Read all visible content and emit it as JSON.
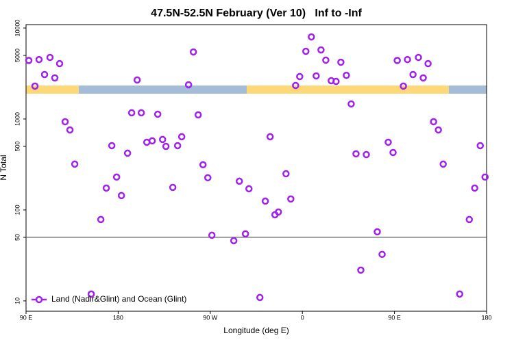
{
  "chart_data": {
    "type": "scatter",
    "title": "47.5N-52.5N February (Ver 10)   Inf to -Inf",
    "x_label": "Longitude (deg E)",
    "y_label": "N Total",
    "log_y": true,
    "hline": 50,
    "xlim": [
      90,
      540
    ],
    "xticks": [
      {
        "value": 90,
        "label": "90 E"
      },
      180,
      {
        "value": 270,
        "label": "90 W"
      },
      {
        "value": 360,
        "label": "0"
      },
      {
        "value": 450,
        "label": "90 E"
      },
      {
        "value": 540,
        "label": "180"
      }
    ],
    "ylim": [
      7.7,
      10900
    ],
    "yticks": [
      10,
      50,
      100,
      500,
      1000,
      5000,
      10000
    ],
    "legend": "bottom-left",
    "x": [
      92.7,
      98.7,
      102.7,
      108.1,
      113.4,
      118.1,
      122.8,
      128.2,
      132.9,
      137.6,
      153.7,
      163.1,
      168.4,
      173.8,
      178.5,
      183.2,
      189.2,
      193.2,
      198.6,
      202.6,
      208.0,
      213.3,
      218.7,
      223.4,
      226.7,
      233.4,
      238.1,
      242.1,
      248.8,
      253.5,
      258.2,
      262.9,
      267.6,
      271.6,
      293.0,
      298.4,
      304.4,
      307.8,
      318.5,
      323.8,
      328.5,
      333.2,
      336.6,
      344.0,
      348.7,
      353.4,
      357.4,
      363.4,
      368.8,
      373.5,
      378.2,
      382.9,
      388.2,
      392.9,
      397.6,
      403.0,
      407.7,
      412.4,
      417.1,
      422.5,
      433.2,
      437.9,
      443.9,
      448.6,
      452.7,
      458.7,
      462.7,
      468.1,
      473.4,
      478.1,
      482.8,
      488.2,
      492.9,
      497.6,
      513.7,
      523.1,
      528.4,
      533.8,
      538.5
    ],
    "series": [
      {
        "name": "Land (Nadir&Glint) and Ocean (Glint)",
        "color": "#a020f0",
        "values": [
          4400,
          2300,
          4500,
          3080,
          4750,
          2830,
          4060,
          933,
          758,
          319,
          11.9,
          78.5,
          174,
          509,
          230,
          144,
          421,
          1169,
          2684,
          1169,
          555,
          575,
          1129,
          595,
          500,
          177,
          509,
          638,
          2377,
          5458,
          1110,
          314,
          226,
          52.7,
          45.9,
          207,
          54.6,
          171,
          10.9,
          125,
          638,
          88.5,
          94.9,
          250,
          132,
          2336,
          2925,
          5550,
          7985,
          2977,
          5745,
          4436,
          2636,
          2590,
          4210,
          3020,
          1464,
          414,
          21.8,
          406,
          57.5,
          32.5,
          555,
          428,
          4400,
          2300,
          4500,
          3080,
          4750,
          2830,
          4060,
          933,
          758,
          319,
          11.9,
          78.5,
          174,
          509,
          230
        ]
      }
    ]
  }
}
